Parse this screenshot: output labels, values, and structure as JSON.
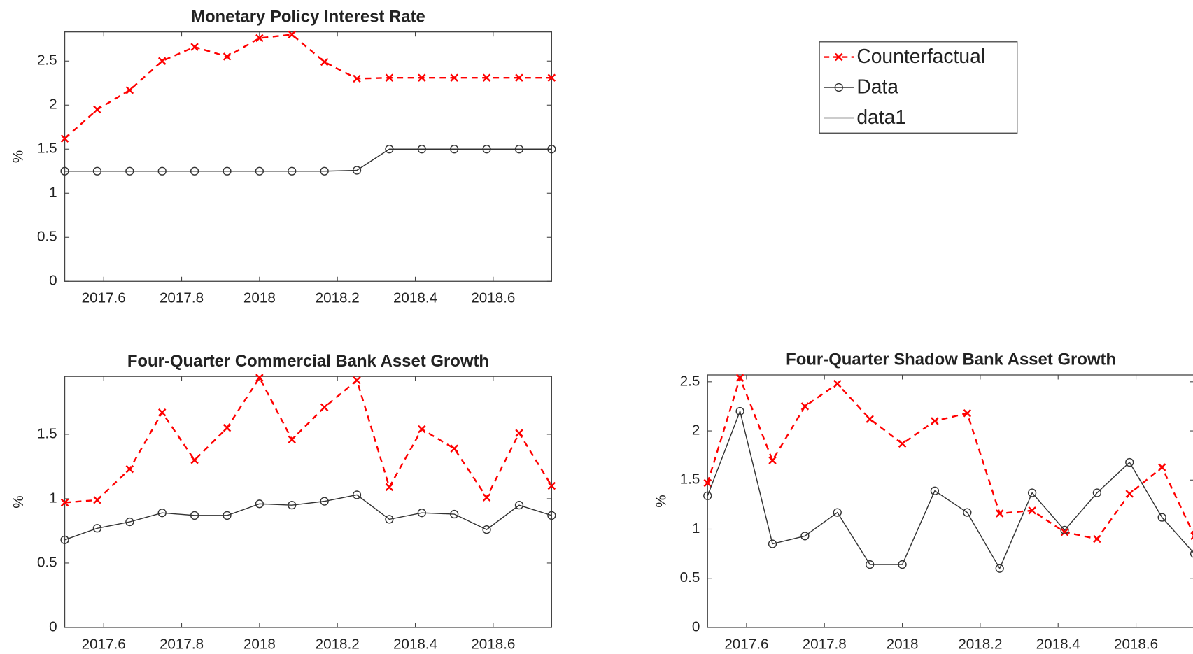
{
  "chart_data": [
    {
      "type": "line",
      "title": "Monetary Policy Interest Rate",
      "ylabel": "%",
      "x": [
        2017.5,
        2017.5833,
        2017.6667,
        2017.75,
        2017.8333,
        2017.9167,
        2018,
        2018.0833,
        2018.1667,
        2018.25,
        2018.3333,
        2018.4167,
        2018.5,
        2018.5833,
        2018.6667,
        2018.75
      ],
      "series": [
        {
          "name": "Counterfactual",
          "color": "#ff0000",
          "marker": "x",
          "dashed": true,
          "values": [
            1.62,
            1.95,
            2.17,
            2.5,
            2.66,
            2.55,
            2.76,
            2.8,
            2.49,
            2.3,
            2.31,
            2.31,
            2.31,
            2.31,
            2.31,
            2.31
          ]
        },
        {
          "name": "Data",
          "color": "#333333",
          "marker": "o",
          "dashed": false,
          "values": [
            1.25,
            1.25,
            1.25,
            1.25,
            1.25,
            1.25,
            1.25,
            1.25,
            1.25,
            1.26,
            1.5,
            1.5,
            1.5,
            1.5,
            1.5,
            1.5
          ]
        }
      ],
      "xlim": [
        2017.5,
        2018.75
      ],
      "xticks": [
        2017.6,
        2017.8,
        2018,
        2018.2,
        2018.4,
        2018.6
      ],
      "ylim": [
        0,
        2.83
      ],
      "yticks": [
        0,
        0.5,
        1,
        1.5,
        2,
        2.5
      ],
      "grid": false
    },
    {
      "type": "line",
      "title": "Four-Quarter Commercial Bank Asset Growth",
      "ylabel": "%",
      "x": [
        2017.5,
        2017.5833,
        2017.6667,
        2017.75,
        2017.8333,
        2017.9167,
        2018,
        2018.0833,
        2018.1667,
        2018.25,
        2018.3333,
        2018.4167,
        2018.5,
        2018.5833,
        2018.6667,
        2018.75
      ],
      "series": [
        {
          "name": "Counterfactual",
          "color": "#ff0000",
          "marker": "x",
          "dashed": true,
          "values": [
            0.97,
            0.99,
            1.23,
            1.67,
            1.3,
            1.55,
            1.94,
            1.46,
            1.71,
            1.92,
            1.09,
            1.54,
            1.39,
            1.01,
            1.51,
            1.1
          ]
        },
        {
          "name": "Data",
          "color": "#333333",
          "marker": "o",
          "dashed": false,
          "values": [
            0.68,
            0.77,
            0.82,
            0.89,
            0.87,
            0.87,
            0.96,
            0.95,
            0.98,
            1.03,
            0.84,
            0.89,
            0.88,
            0.76,
            0.95,
            0.87
          ]
        }
      ],
      "xlim": [
        2017.5,
        2018.75
      ],
      "xticks": [
        2017.6,
        2017.8,
        2018,
        2018.2,
        2018.4,
        2018.6
      ],
      "ylim": [
        0,
        1.95
      ],
      "yticks": [
        0,
        0.5,
        1,
        1.5
      ],
      "grid": false
    },
    {
      "type": "line",
      "title": "Four-Quarter Shadow Bank Asset Growth",
      "ylabel": "%",
      "x": [
        2017.5,
        2017.5833,
        2017.6667,
        2017.75,
        2017.8333,
        2017.9167,
        2018,
        2018.0833,
        2018.1667,
        2018.25,
        2018.3333,
        2018.4167,
        2018.5,
        2018.5833,
        2018.6667,
        2018.75
      ],
      "series": [
        {
          "name": "Counterfactual",
          "color": "#ff0000",
          "marker": "x",
          "dashed": true,
          "values": [
            1.47,
            2.54,
            1.7,
            2.25,
            2.48,
            2.12,
            1.87,
            2.1,
            2.18,
            1.16,
            1.19,
            0.97,
            0.9,
            1.36,
            1.63,
            0.93
          ]
        },
        {
          "name": "Data",
          "color": "#333333",
          "marker": "o",
          "dashed": false,
          "values": [
            1.34,
            2.2,
            0.85,
            0.93,
            1.17,
            0.64,
            0.64,
            1.39,
            1.17,
            0.6,
            1.37,
            0.99,
            1.37,
            1.68,
            1.12,
            0.75
          ]
        }
      ],
      "xlim": [
        2017.5,
        2018.75
      ],
      "xticks": [
        2017.6,
        2017.8,
        2018,
        2018.2,
        2018.4,
        2018.6
      ],
      "ylim": [
        0,
        2.57
      ],
      "yticks": [
        0,
        0.5,
        1,
        1.5,
        2,
        2.5
      ],
      "grid": false
    }
  ],
  "legend": {
    "entries": [
      {
        "name": "Counterfactual",
        "color": "#ff0000",
        "marker": "x",
        "dashed": true
      },
      {
        "name": "Data",
        "color": "#333333",
        "marker": "o",
        "dashed": false
      },
      {
        "name": "data1",
        "color": "#333333",
        "marker": "none",
        "dashed": false
      }
    ]
  }
}
